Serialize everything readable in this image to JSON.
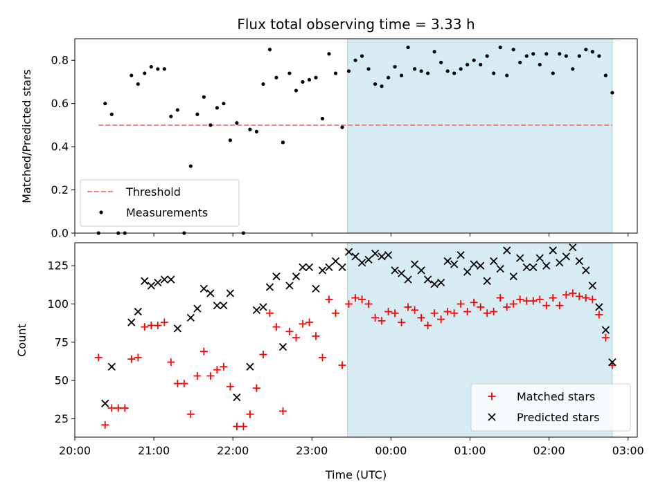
{
  "chart_data": [
    {
      "type": "scatter",
      "title": "Flux total observing time = 3.33 h",
      "ylabel": "Matched/Predicted stars",
      "xlabel": "",
      "ylim": [
        0,
        0.9
      ],
      "yticks": [
        "0.0",
        "0.2",
        "0.4",
        "0.6",
        "0.8"
      ],
      "shaded_region": {
        "from": "23:27",
        "to": "02:48",
        "color": "#add8e6"
      },
      "threshold": {
        "name": "Threshold",
        "value": 0.5,
        "from": "20:18",
        "to": "02:48",
        "color": "#f08080",
        "style": "dashed"
      },
      "series": [
        {
          "name": "Measurements",
          "color": "#000000",
          "marker": "dot",
          "points": [
            [
              "20:18",
              0.0
            ],
            [
              "20:23",
              0.6
            ],
            [
              "20:28",
              0.55
            ],
            [
              "20:33",
              0.0
            ],
            [
              "20:38",
              0.0
            ],
            [
              "20:43",
              0.73
            ],
            [
              "20:48",
              0.69
            ],
            [
              "20:53",
              0.74
            ],
            [
              "20:58",
              0.77
            ],
            [
              "21:03",
              0.76
            ],
            [
              "21:08",
              0.76
            ],
            [
              "21:13",
              0.54
            ],
            [
              "21:18",
              0.57
            ],
            [
              "21:23",
              0.0
            ],
            [
              "21:28",
              0.31
            ],
            [
              "21:33",
              0.55
            ],
            [
              "21:38",
              0.63
            ],
            [
              "21:43",
              0.5
            ],
            [
              "21:48",
              0.58
            ],
            [
              "21:53",
              0.6
            ],
            [
              "21:58",
              0.43
            ],
            [
              "22:03",
              0.51
            ],
            [
              "22:08",
              0.0
            ],
            [
              "22:13",
              0.48
            ],
            [
              "22:18",
              0.47
            ],
            [
              "22:23",
              0.69
            ],
            [
              "22:28",
              0.85
            ],
            [
              "22:33",
              0.72
            ],
            [
              "22:38",
              0.42
            ],
            [
              "22:43",
              0.74
            ],
            [
              "22:48",
              0.66
            ],
            [
              "22:53",
              0.7
            ],
            [
              "22:58",
              0.71
            ],
            [
              "23:03",
              0.72
            ],
            [
              "23:08",
              0.53
            ],
            [
              "23:13",
              0.83
            ],
            [
              "23:18",
              0.74
            ],
            [
              "23:23",
              0.49
            ],
            [
              "23:28",
              0.75
            ],
            [
              "23:33",
              0.8
            ],
            [
              "23:38",
              0.82
            ],
            [
              "23:43",
              0.76
            ],
            [
              "23:48",
              0.69
            ],
            [
              "23:53",
              0.68
            ],
            [
              "23:58",
              0.72
            ],
            [
              "00:03",
              0.77
            ],
            [
              "00:08",
              0.73
            ],
            [
              "00:13",
              0.86
            ],
            [
              "00:18",
              0.76
            ],
            [
              "00:23",
              0.75
            ],
            [
              "00:28",
              0.74
            ],
            [
              "00:33",
              0.84
            ],
            [
              "00:38",
              0.79
            ],
            [
              "00:43",
              0.75
            ],
            [
              "00:48",
              0.74
            ],
            [
              "00:53",
              0.76
            ],
            [
              "00:58",
              0.78
            ],
            [
              "01:03",
              0.8
            ],
            [
              "01:08",
              0.78
            ],
            [
              "01:13",
              0.82
            ],
            [
              "01:18",
              0.74
            ],
            [
              "01:23",
              0.86
            ],
            [
              "01:28",
              0.73
            ],
            [
              "01:33",
              0.85
            ],
            [
              "01:38",
              0.79
            ],
            [
              "01:43",
              0.82
            ],
            [
              "01:48",
              0.83
            ],
            [
              "01:53",
              0.78
            ],
            [
              "01:58",
              0.83
            ],
            [
              "02:03",
              0.74
            ],
            [
              "02:08",
              0.83
            ],
            [
              "02:13",
              0.82
            ],
            [
              "02:18",
              0.76
            ],
            [
              "02:23",
              0.82
            ],
            [
              "02:28",
              0.85
            ],
            [
              "02:33",
              0.84
            ],
            [
              "02:38",
              0.82
            ],
            [
              "02:43",
              0.73
            ],
            [
              "02:48",
              0.65
            ]
          ]
        }
      ],
      "legend": {
        "position": "lower left",
        "entries": [
          "Threshold",
          "Measurements"
        ]
      }
    },
    {
      "type": "scatter",
      "title": "",
      "ylabel": "Count",
      "xlabel": "Time (UTC)",
      "ylim": [
        13,
        140
      ],
      "yticks": [
        "25",
        "50",
        "75",
        "100",
        "125"
      ],
      "xticks": [
        "20:00",
        "21:00",
        "22:00",
        "23:00",
        "00:00",
        "01:00",
        "02:00",
        "03:00"
      ],
      "xlim": [
        "20:00",
        "03:07"
      ],
      "shaded_region": {
        "from": "23:27",
        "to": "02:48",
        "color": "#add8e6"
      },
      "series": [
        {
          "name": "Matched stars",
          "color": "#ff0000",
          "marker": "plus",
          "points": [
            [
              "20:18",
              65
            ],
            [
              "20:23",
              21
            ],
            [
              "20:28",
              32
            ],
            [
              "20:33",
              32
            ],
            [
              "20:38",
              32
            ],
            [
              "20:43",
              64
            ],
            [
              "20:48",
              65
            ],
            [
              "20:53",
              85
            ],
            [
              "20:58",
              86
            ],
            [
              "21:03",
              86
            ],
            [
              "21:08",
              88
            ],
            [
              "21:13",
              62
            ],
            [
              "21:18",
              48
            ],
            [
              "21:23",
              48
            ],
            [
              "21:28",
              28
            ],
            [
              "21:33",
              53
            ],
            [
              "21:38",
              69
            ],
            [
              "21:43",
              53
            ],
            [
              "21:48",
              57
            ],
            [
              "21:53",
              59
            ],
            [
              "21:58",
              46
            ],
            [
              "22:03",
              20
            ],
            [
              "22:08",
              20
            ],
            [
              "22:13",
              28
            ],
            [
              "22:18",
              45
            ],
            [
              "22:23",
              67
            ],
            [
              "22:28",
              94
            ],
            [
              "22:33",
              85
            ],
            [
              "22:38",
              30
            ],
            [
              "22:43",
              82
            ],
            [
              "22:48",
              78
            ],
            [
              "22:53",
              87
            ],
            [
              "22:58",
              88
            ],
            [
              "23:03",
              79
            ],
            [
              "23:08",
              65
            ],
            [
              "23:13",
              103
            ],
            [
              "23:18",
              94
            ],
            [
              "23:23",
              60
            ],
            [
              "23:28",
              100
            ],
            [
              "23:33",
              104
            ],
            [
              "23:38",
              103
            ],
            [
              "23:43",
              100
            ],
            [
              "23:48",
              91
            ],
            [
              "23:53",
              89
            ],
            [
              "23:58",
              95
            ],
            [
              "00:03",
              94
            ],
            [
              "00:08",
              88
            ],
            [
              "00:13",
              98
            ],
            [
              "00:18",
              96
            ],
            [
              "00:23",
              91
            ],
            [
              "00:28",
              86
            ],
            [
              "00:33",
              94
            ],
            [
              "00:38",
              90
            ],
            [
              "00:43",
              95
            ],
            [
              "00:48",
              94
            ],
            [
              "00:53",
              100
            ],
            [
              "00:58",
              95
            ],
            [
              "01:03",
              101
            ],
            [
              "01:08",
              98
            ],
            [
              "01:13",
              94
            ],
            [
              "01:18",
              95
            ],
            [
              "01:23",
              104
            ],
            [
              "01:28",
              98
            ],
            [
              "01:33",
              100
            ],
            [
              "01:38",
              103
            ],
            [
              "01:43",
              102
            ],
            [
              "01:48",
              102
            ],
            [
              "01:53",
              103
            ],
            [
              "01:58",
              99
            ],
            [
              "02:03",
              104
            ],
            [
              "02:08",
              99
            ],
            [
              "02:13",
              106
            ],
            [
              "02:18",
              107
            ],
            [
              "02:23",
              105
            ],
            [
              "02:28",
              104
            ],
            [
              "02:33",
              103
            ],
            [
              "02:38",
              93
            ],
            [
              "02:43",
              78
            ],
            [
              "02:48",
              60
            ]
          ]
        },
        {
          "name": "Predicted stars",
          "color": "#000000",
          "marker": "x",
          "points": [
            [
              "20:23",
              35
            ],
            [
              "20:28",
              59
            ],
            [
              "20:43",
              88
            ],
            [
              "20:48",
              95
            ],
            [
              "20:53",
              115
            ],
            [
              "20:58",
              112
            ],
            [
              "21:03",
              114
            ],
            [
              "21:08",
              116
            ],
            [
              "21:13",
              116
            ],
            [
              "21:18",
              84
            ],
            [
              "21:28",
              91
            ],
            [
              "21:33",
              97
            ],
            [
              "21:38",
              110
            ],
            [
              "21:43",
              107
            ],
            [
              "21:48",
              99
            ],
            [
              "21:53",
              99
            ],
            [
              "21:58",
              107
            ],
            [
              "22:03",
              39
            ],
            [
              "22:13",
              59
            ],
            [
              "22:18",
              96
            ],
            [
              "22:23",
              98
            ],
            [
              "22:28",
              111
            ],
            [
              "22:33",
              118
            ],
            [
              "22:38",
              72
            ],
            [
              "22:43",
              112
            ],
            [
              "22:48",
              118
            ],
            [
              "22:53",
              124
            ],
            [
              "22:58",
              124
            ],
            [
              "23:03",
              110
            ],
            [
              "23:08",
              122
            ],
            [
              "23:13",
              124
            ],
            [
              "23:18",
              128
            ],
            [
              "23:23",
              124
            ],
            [
              "23:28",
              134
            ],
            [
              "23:33",
              131
            ],
            [
              "23:38",
              127
            ],
            [
              "23:43",
              129
            ],
            [
              "23:48",
              133
            ],
            [
              "23:53",
              131
            ],
            [
              "23:58",
              132
            ],
            [
              "00:03",
              122
            ],
            [
              "00:08",
              120
            ],
            [
              "00:13",
              116
            ],
            [
              "00:18",
              126
            ],
            [
              "00:23",
              122
            ],
            [
              "00:28",
              116
            ],
            [
              "00:33",
              113
            ],
            [
              "00:38",
              114
            ],
            [
              "00:43",
              128
            ],
            [
              "00:48",
              126
            ],
            [
              "00:53",
              132
            ],
            [
              "00:58",
              121
            ],
            [
              "01:03",
              126
            ],
            [
              "01:08",
              125
            ],
            [
              "01:13",
              115
            ],
            [
              "01:18",
              128
            ],
            [
              "01:23",
              123
            ],
            [
              "01:28",
              135
            ],
            [
              "01:33",
              118
            ],
            [
              "01:38",
              130
            ],
            [
              "01:43",
              124
            ],
            [
              "01:48",
              124
            ],
            [
              "01:53",
              130
            ],
            [
              "01:58",
              125
            ],
            [
              "02:03",
              135
            ],
            [
              "02:08",
              127
            ],
            [
              "02:13",
              131
            ],
            [
              "02:18",
              137
            ],
            [
              "02:23",
              128
            ],
            [
              "02:28",
              122
            ],
            [
              "02:33",
              112
            ],
            [
              "02:38",
              98
            ],
            [
              "02:43",
              83
            ],
            [
              "02:48",
              62
            ]
          ]
        }
      ],
      "legend": {
        "position": "lower right",
        "entries": [
          "Matched stars",
          "Predicted stars"
        ]
      }
    }
  ]
}
